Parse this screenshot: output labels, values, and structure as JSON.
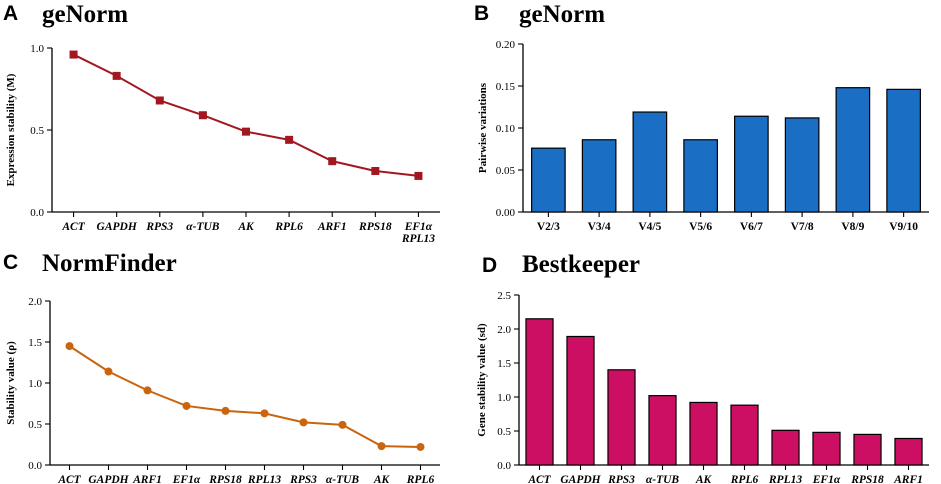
{
  "chart_data": [
    {
      "panel": "A",
      "type": "line",
      "title": "geNorm",
      "ylabel": "Expression stability (M)",
      "xlabel": "",
      "categories": [
        "ACT",
        "GAPDH",
        "RPS3",
        "α-TUB",
        "AK",
        "RPL6",
        "ARF1",
        "RPS18",
        "EF1α\nRPL13"
      ],
      "values": [
        0.96,
        0.83,
        0.68,
        0.59,
        0.49,
        0.44,
        0.31,
        0.25,
        0.22
      ],
      "ylim": [
        0,
        1.0
      ],
      "yticks": [
        0,
        0.5,
        1.0
      ],
      "ytick_labels": [
        "0.0",
        "0.5",
        "1.0"
      ],
      "italic_categories": true,
      "color": "#a31720",
      "marker": "square"
    },
    {
      "panel": "B",
      "type": "bar",
      "title": "geNorm",
      "ylabel": "Pairwise variations",
      "xlabel": "",
      "categories": [
        "V2/3",
        "V3/4",
        "V4/5",
        "V5/6",
        "V6/7",
        "V7/8",
        "V8/9",
        "V9/10"
      ],
      "values": [
        0.076,
        0.086,
        0.119,
        0.086,
        0.114,
        0.112,
        0.148,
        0.146
      ],
      "ylim": [
        0,
        0.2
      ],
      "yticks": [
        0,
        0.05,
        0.1,
        0.15,
        0.2
      ],
      "ytick_labels": [
        "0.00",
        "0.05",
        "0.10",
        "0.15",
        "0.20"
      ],
      "italic_categories": false,
      "color": "#1a6fc4"
    },
    {
      "panel": "C",
      "type": "line",
      "title": "NormFinder",
      "ylabel": "Stability value (ρ)",
      "xlabel": "",
      "categories": [
        "ACT",
        "GAPDH",
        "ARF1",
        "EF1α",
        "RPS18",
        "RPL13",
        "RPS3",
        "α-TUB",
        "AK",
        "RPL6"
      ],
      "values": [
        1.45,
        1.14,
        0.91,
        0.72,
        0.66,
        0.63,
        0.52,
        0.49,
        0.23,
        0.22
      ],
      "ylim": [
        0,
        2.0
      ],
      "yticks": [
        0,
        0.5,
        1.0,
        1.5,
        2.0
      ],
      "ytick_labels": [
        "0.0",
        "0.5",
        "1.0",
        "1.5",
        "2.0"
      ],
      "italic_categories": true,
      "color": "#c9640f",
      "marker": "circle"
    },
    {
      "panel": "D",
      "type": "bar",
      "title": "Bestkeeper",
      "ylabel": "Gene stability value (sd)",
      "xlabel": "",
      "categories": [
        "ACT",
        "GAPDH",
        "RPS3",
        "α-TUB",
        "AK",
        "RPL6",
        "RPL13",
        "EF1α",
        "RPS18",
        "ARF1"
      ],
      "values": [
        2.15,
        1.89,
        1.4,
        1.02,
        0.92,
        0.88,
        0.51,
        0.48,
        0.45,
        0.39
      ],
      "ylim": [
        0,
        2.5
      ],
      "yticks": [
        0,
        0.5,
        1.0,
        1.5,
        2.0,
        2.5
      ],
      "ytick_labels": [
        "0.0",
        "0.5",
        "1.0",
        "1.5",
        "2.0",
        "2.5"
      ],
      "italic_categories": true,
      "color": "#cc0f62"
    }
  ]
}
